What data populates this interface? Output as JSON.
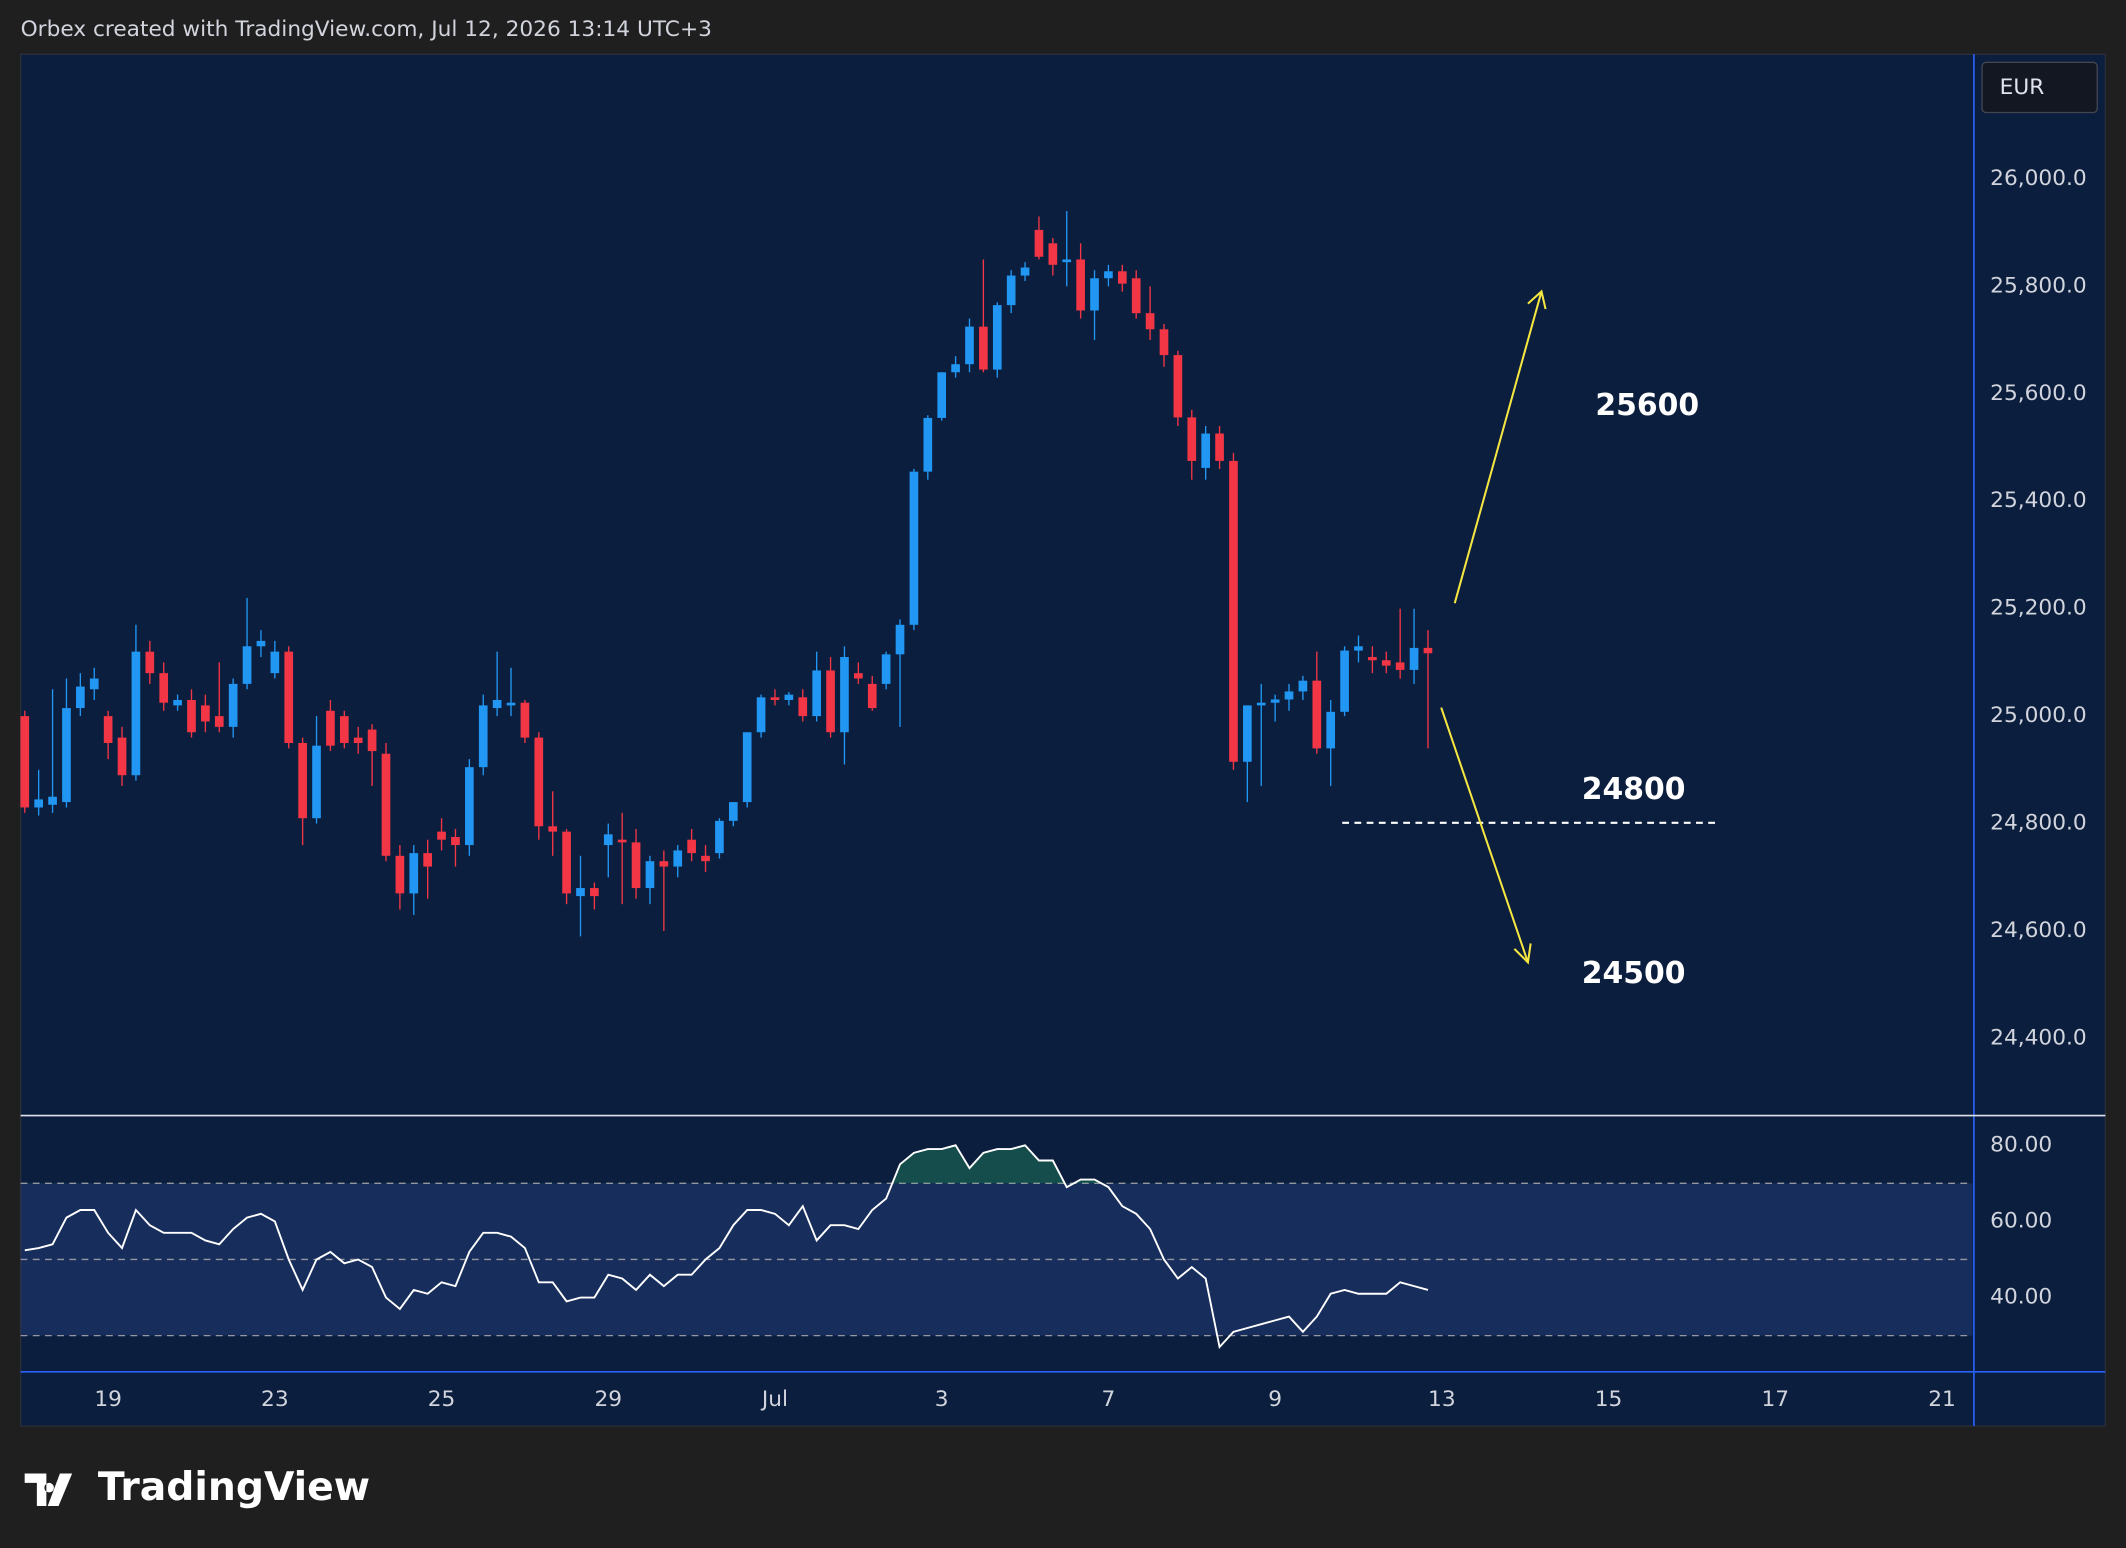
{
  "header": {
    "text": "Orbex created with TradingView.com, Jul 12, 2026 13:14 UTC+3"
  },
  "currency": "EUR",
  "logo": "TradingView",
  "chart_data": [
    {
      "type": "candlestick",
      "up_color": "#2196f3",
      "down_color": "#f23645",
      "open": [
        25000,
        24830,
        24835,
        24840,
        25015,
        25050,
        25000,
        24960,
        24890,
        25120,
        25080,
        25020,
        25030,
        25020,
        25000,
        24980,
        25060,
        25130,
        25080,
        25120,
        24950,
        24810,
        25010,
        25000,
        24960,
        24975,
        24930,
        24740,
        24670,
        24745,
        24785,
        24775,
        24760,
        24905,
        25015,
        25020,
        25025,
        24960,
        24795,
        24785,
        24665,
        24680,
        24760,
        24770,
        24765,
        24680,
        24730,
        24720,
        24770,
        24740,
        24745,
        24805,
        24840,
        24970,
        25035,
        25030,
        25035,
        25000,
        25085,
        24970,
        25080,
        25060,
        25060,
        25115,
        25170,
        25455,
        25555,
        25640,
        25655,
        25725,
        25645,
        25765,
        25820,
        25905,
        25880,
        25845,
        25850,
        25755,
        25815,
        25828,
        25815,
        25750,
        25720,
        25672,
        25556,
        25462,
        25526,
        25475,
        24915,
        25020,
        25025,
        25031,
        25046,
        25066,
        24940,
        25008,
        25122,
        25110,
        25104,
        25100,
        25086,
        25127
      ],
      "high": [
        25010,
        24900,
        25050,
        25070,
        25080,
        25090,
        25010,
        24980,
        25170,
        25140,
        25100,
        25040,
        25050,
        25040,
        25100,
        25070,
        25220,
        25160,
        25140,
        25130,
        24960,
        25000,
        25030,
        25010,
        24980,
        24985,
        24950,
        24760,
        24760,
        24770,
        24810,
        24790,
        24920,
        25040,
        25120,
        25090,
        25030,
        24970,
        24860,
        24790,
        24740,
        24690,
        24800,
        24820,
        24790,
        24740,
        24750,
        24760,
        24790,
        24760,
        24810,
        24840,
        24970,
        25040,
        25050,
        25045,
        25050,
        25120,
        25110,
        25130,
        25100,
        25075,
        25120,
        25180,
        25460,
        25560,
        25640,
        25670,
        25740,
        25850,
        25770,
        25830,
        25845,
        25930,
        25890,
        25940,
        25880,
        25830,
        25840,
        25840,
        25830,
        25800,
        25730,
        25680,
        25570,
        25540,
        25540,
        25490,
        25020,
        25060,
        25040,
        25060,
        25075,
        25120,
        25030,
        25130,
        25150,
        25130,
        25120,
        25200,
        25200,
        25160
      ],
      "low": [
        24820,
        24815,
        24820,
        24830,
        25000,
        25030,
        24920,
        24870,
        24880,
        25060,
        25010,
        25010,
        24960,
        24970,
        24970,
        24960,
        25050,
        25110,
        25070,
        24940,
        24760,
        24800,
        24935,
        24940,
        24930,
        24870,
        24730,
        24640,
        24630,
        24660,
        24750,
        24720,
        24740,
        24890,
        25000,
        25000,
        24950,
        24770,
        24740,
        24650,
        24590,
        24640,
        24700,
        24650,
        24660,
        24650,
        24600,
        24700,
        24730,
        24710,
        24735,
        24795,
        24830,
        24960,
        25020,
        25020,
        24990,
        24990,
        24960,
        24910,
        25060,
        25010,
        25050,
        24980,
        25160,
        25440,
        25550,
        25630,
        25640,
        25640,
        25630,
        25750,
        25810,
        25850,
        25820,
        25800,
        25740,
        25700,
        25800,
        25790,
        25740,
        25700,
        25650,
        25540,
        25440,
        25440,
        25460,
        24900,
        24840,
        24870,
        24990,
        25010,
        25030,
        24930,
        24870,
        25000,
        25100,
        25080,
        25080,
        25070,
        25060,
        24940
      ],
      "close": [
        24830,
        24845,
        24850,
        25015,
        25055,
        25070,
        24950,
        24890,
        25120,
        25080,
        25025,
        25030,
        24970,
        24990,
        24980,
        25060,
        25130,
        25140,
        25120,
        24950,
        24810,
        24945,
        24945,
        24950,
        24950,
        24935,
        24740,
        24670,
        24745,
        24720,
        24770,
        24760,
        24905,
        25020,
        25030,
        25025,
        24960,
        24795,
        24785,
        24670,
        24680,
        24665,
        24780,
        24765,
        24680,
        24730,
        24720,
        24750,
        24745,
        24730,
        24805,
        24840,
        24970,
        25035,
        25030,
        25040,
        25000,
        25085,
        24970,
        25110,
        25070,
        25015,
        25115,
        25170,
        25455,
        25555,
        25640,
        25655,
        25725,
        25645,
        25765,
        25820,
        25835,
        25855,
        25840,
        25850,
        25755,
        25815,
        25828,
        25805,
        25750,
        25720,
        25672,
        25556,
        25475,
        25526,
        25475,
        24915,
        25020,
        25025,
        25031,
        25046,
        25066,
        24940,
        25008,
        25122,
        25130,
        25104,
        25094,
        25086,
        25127,
        25117
      ],
      "xlim": [
        -0.3,
        140.2
      ],
      "xticks": [
        {
          "value": 6,
          "label": "19"
        },
        {
          "value": 18,
          "label": "23"
        },
        {
          "value": 30,
          "label": "25"
        },
        {
          "value": 42,
          "label": "29"
        },
        {
          "value": 54,
          "label": "Jul"
        },
        {
          "value": 66,
          "label": "3"
        },
        {
          "value": 78,
          "label": "7"
        },
        {
          "value": 90,
          "label": "9"
        },
        {
          "value": 102,
          "label": "13"
        },
        {
          "value": 114,
          "label": "15"
        },
        {
          "value": 126,
          "label": "17"
        },
        {
          "value": 138,
          "label": "21"
        }
      ],
      "ylim": [
        24259,
        26232
      ],
      "yticks": [
        {
          "value": 24400,
          "label": "24,400.0"
        },
        {
          "value": 24600,
          "label": "24,600.0"
        },
        {
          "value": 24800,
          "label": "24,800.0"
        },
        {
          "value": 25000,
          "label": "25,000.0"
        },
        {
          "value": 25200,
          "label": "25,200.0"
        },
        {
          "value": 25400,
          "label": "25,400.0"
        },
        {
          "value": 25600,
          "label": "25,600.0"
        },
        {
          "value": 25800,
          "label": "25,800.0"
        },
        {
          "value": 26000,
          "label": "26,000.0"
        }
      ],
      "grid": false,
      "annotations": [
        "25600",
        "24800",
        "24500"
      ]
    },
    {
      "type": "line",
      "color": "#ffffff",
      "values": [
        52.4,
        53,
        54,
        61,
        63,
        63,
        57,
        53,
        63,
        59,
        57,
        57,
        57,
        55,
        54,
        58,
        61,
        62,
        60,
        50,
        42,
        50,
        52,
        49,
        50,
        48,
        40,
        37,
        42,
        41,
        44,
        43,
        52,
        57,
        57,
        56,
        53,
        44,
        44,
        39,
        40,
        40,
        46,
        45,
        42,
        46,
        43,
        46,
        46,
        50,
        53,
        59,
        63,
        63,
        62,
        59,
        64,
        55,
        59,
        59,
        58,
        63,
        66,
        75,
        78,
        79,
        79,
        80,
        74,
        78,
        79,
        79,
        80,
        76,
        76,
        69,
        71,
        71,
        69,
        64,
        62,
        58,
        50,
        45,
        48,
        45,
        27,
        31,
        32,
        33,
        34,
        35,
        31,
        35,
        41,
        42,
        41,
        41,
        41,
        44,
        43,
        42
      ],
      "xlim": [
        -0.3,
        140.2
      ],
      "ylim": [
        20.5,
        87.8
      ],
      "yticks": [
        {
          "value": 40,
          "label": "40.00"
        },
        {
          "value": 60,
          "label": "60.00"
        },
        {
          "value": 80,
          "label": "80.00"
        }
      ],
      "levels": [
        70,
        50,
        30
      ],
      "band": [
        30,
        70
      ],
      "grid": false
    }
  ]
}
